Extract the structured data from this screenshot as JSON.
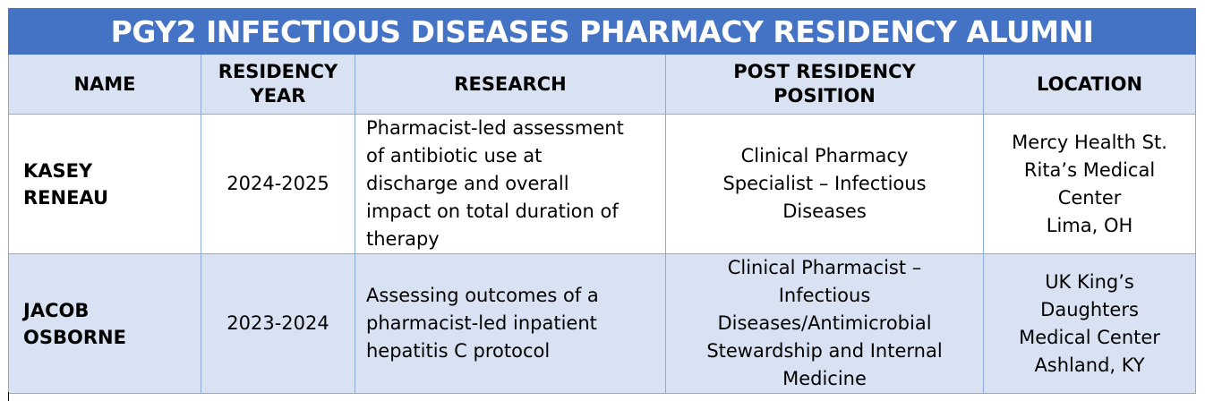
{
  "title": "PGY2 INFECTIOUS DISEASES PHARMACY RESIDENCY ALUMNI",
  "headers": {
    "name": "NAME",
    "year_line1": "RESIDENCY",
    "year_line2": "YEAR",
    "research": "RESEARCH",
    "position_line1": "POST RESIDENCY",
    "position_line2": "POSITION",
    "location": "LOCATION"
  },
  "alumni": [
    {
      "name_line1": "KASEY",
      "name_line2": "RENEAU",
      "year": "2024-2025",
      "research_lines": [
        "Pharmacist-led assessment",
        "of antibiotic use at",
        "discharge and overall",
        "impact on total duration of",
        "therapy"
      ],
      "position_lines": [
        "Clinical Pharmacy",
        "Specialist – Infectious",
        "Diseases"
      ],
      "location_lines": [
        "Mercy Health St.",
        "Rita’s Medical",
        "Center",
        "Lima, OH"
      ]
    },
    {
      "name_line1": "JACOB",
      "name_line2": "OSBORNE",
      "year": "2023-2024",
      "research_lines": [
        "Assessing outcomes of a",
        "pharmacist-led inpatient",
        "hepatitis C protocol"
      ],
      "position_lines": [
        "Clinical Pharmacist –",
        "Infectious",
        "Diseases/Antimicrobial",
        "Stewardship and Internal",
        "Medicine"
      ],
      "location_lines": [
        "UK King’s",
        "Daughters",
        "Medical Center",
        "Ashland, KY"
      ]
    }
  ]
}
